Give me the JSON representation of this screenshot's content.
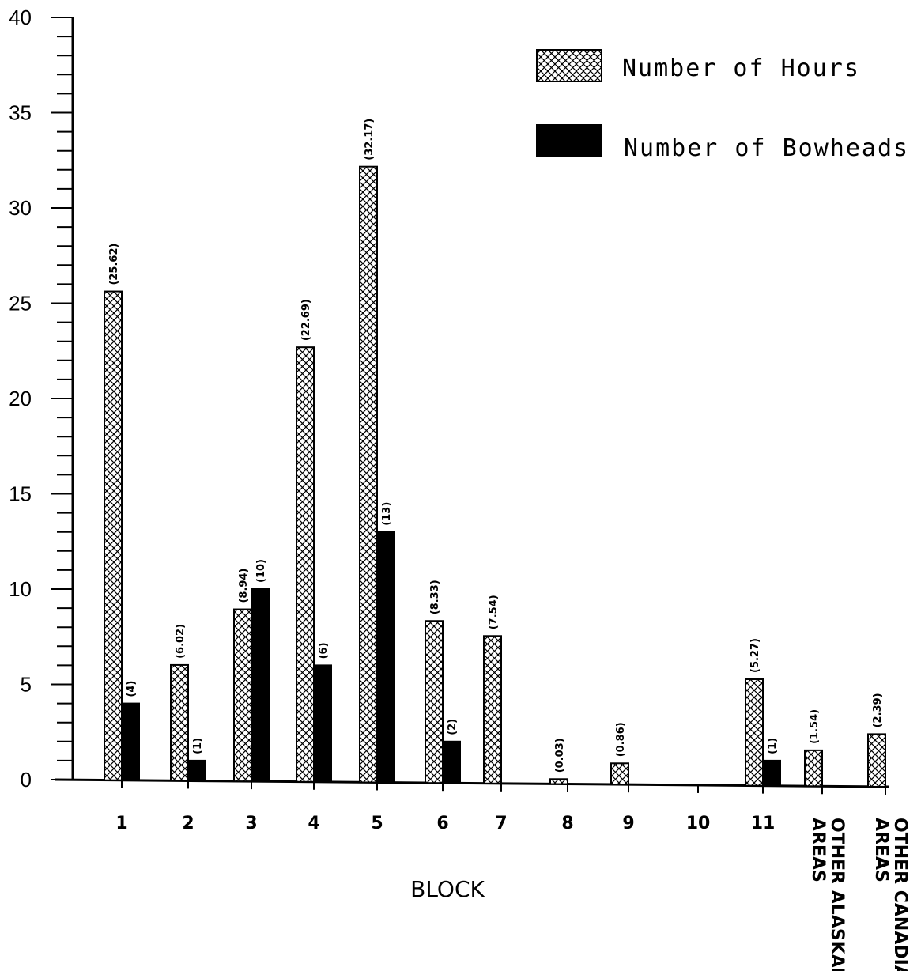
{
  "chart_data": {
    "type": "bar",
    "title": "",
    "xlabel": "BLOCK",
    "ylabel": "",
    "ylim": [
      0,
      40
    ],
    "yticks": [
      0,
      5,
      10,
      15,
      20,
      25,
      30,
      35,
      40
    ],
    "categories": [
      "1",
      "2",
      "3",
      "4",
      "5",
      "6",
      "7",
      "8",
      "9",
      "10",
      "11",
      "OTHER ALASKAN AREAS",
      "OTHER CANADIAN AREAS"
    ],
    "category_lines": [
      [
        "1"
      ],
      [
        "2"
      ],
      [
        "3"
      ],
      [
        "4"
      ],
      [
        "5"
      ],
      [
        "6"
      ],
      [
        "7"
      ],
      [
        "8"
      ],
      [
        "9"
      ],
      [
        "10"
      ],
      [
        "11"
      ],
      [
        "OTHER ALASKAN",
        "AREAS"
      ],
      [
        "OTHER CANADIAN",
        "AREAS"
      ]
    ],
    "series": [
      {
        "name": "Number of Hours",
        "pattern": "crosshatch",
        "values": [
          25.62,
          6.02,
          8.94,
          22.69,
          32.17,
          8.33,
          7.54,
          0.03,
          0.86,
          null,
          5.27,
          1.54,
          2.39
        ],
        "labels": [
          "(25.62)",
          "(6.02)",
          "(8.94)",
          "(22.69)",
          "(32.17)",
          "(8.33)",
          "(7.54)",
          "(0.03)",
          "(0.86)",
          null,
          "(5.27)",
          "(1.54)",
          "(2.39)"
        ]
      },
      {
        "name": "Number of Bowheads",
        "color": "#000000",
        "values": [
          4,
          1,
          10,
          6,
          13,
          2,
          null,
          null,
          null,
          null,
          1,
          null,
          null
        ],
        "labels": [
          "(4)",
          "(1)",
          "(10)",
          "(6)",
          "(13)",
          "(2)",
          null,
          null,
          null,
          null,
          "(1)",
          null,
          null
        ]
      }
    ],
    "grid": false,
    "legend_position": "top-right"
  }
}
